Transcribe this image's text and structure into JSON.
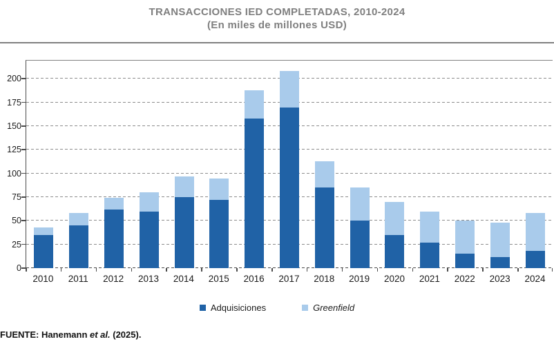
{
  "header": {
    "title_line1": "TRANSACCIONES IED COMPLETADAS, 2010-2024",
    "title_line2": "(En miles de millones USD)"
  },
  "chart_data": {
    "type": "bar",
    "stacked": true,
    "categories": [
      "2010",
      "2011",
      "2012",
      "2013",
      "2014",
      "2015",
      "2016",
      "2017",
      "2018",
      "2019",
      "2020",
      "2021",
      "2022",
      "2023",
      "2024"
    ],
    "series": [
      {
        "name": "Adquisiciones",
        "color": "#2062A6",
        "values": [
          35,
          45,
          62,
          60,
          75,
          72,
          158,
          170,
          85,
          50,
          35,
          27,
          15,
          12,
          18
        ]
      },
      {
        "name": "Greenfield",
        "color": "#A9CBEB",
        "values": [
          8,
          13,
          12,
          20,
          22,
          23,
          30,
          38,
          28,
          35,
          35,
          33,
          35,
          36,
          40
        ]
      }
    ],
    "stack_totals": [
      43,
      58,
      74,
      80,
      97,
      95,
      188,
      208,
      113,
      85,
      70,
      60,
      50,
      48,
      58
    ],
    "title": "TRANSACCIONES IED COMPLETADAS, 2010-2024",
    "subtitle": "(En miles de millones USD)",
    "xlabel": "",
    "ylabel": "",
    "ylim": [
      0,
      220
    ],
    "ytick_step": 25,
    "ytick_max": 200,
    "grid": "horizontal-dashed",
    "legend_position": "bottom"
  },
  "legend": {
    "items": [
      {
        "label": "Adquisiciones",
        "swatch_color": "#2062A6",
        "italic": false
      },
      {
        "label": "Greenfield",
        "swatch_color": "#A9CBEB",
        "italic": true
      }
    ]
  },
  "footer": {
    "prefix": "FUENTE: Hanemann ",
    "italic_part": "et al.",
    "suffix": " (2025)."
  },
  "colors": {
    "adquisiciones": "#2062A6",
    "greenfield": "#A9CBEB",
    "title_gray": "#7F7F7F",
    "gridline": "#8C8C8C",
    "axis": "#4A4A4A"
  }
}
